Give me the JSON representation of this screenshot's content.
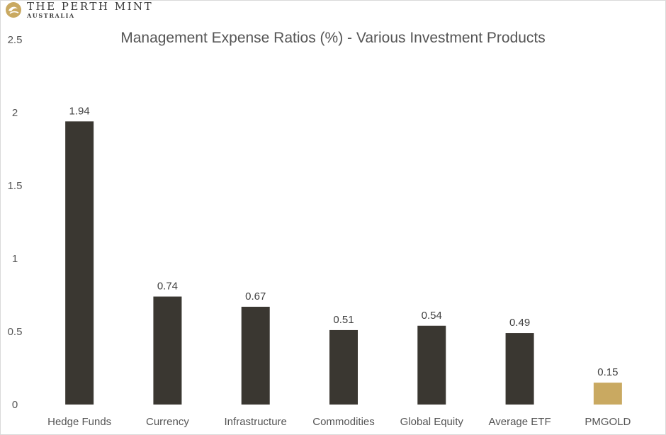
{
  "brand": {
    "name": "THE PERTH MINT",
    "sub": "AUSTRALIA"
  },
  "chart_data": {
    "type": "bar",
    "title": "Management Expense Ratios (%) - Various Investment Products",
    "categories": [
      "Hedge Funds",
      "Currency",
      "Infrastructure",
      "Commodities",
      "Global Equity",
      "Average ETF",
      "PMGOLD"
    ],
    "values": [
      1.94,
      0.74,
      0.67,
      0.51,
      0.54,
      0.49,
      0.15
    ],
    "data_labels": [
      "1.94",
      "0.74",
      "0.67",
      "0.51",
      "0.54",
      "0.49",
      "0.15"
    ],
    "y_ticks": [
      "0",
      "0.5",
      "1",
      "1.5",
      "2",
      "2.5"
    ],
    "y_tick_values": [
      0,
      0.5,
      1,
      1.5,
      2,
      2.5
    ],
    "ylim": [
      0,
      2.5
    ],
    "grid": false,
    "legend": "none",
    "colors": {
      "bar": "#3a3731",
      "highlight": "#c9a961",
      "highlight_category": "PMGOLD"
    }
  }
}
